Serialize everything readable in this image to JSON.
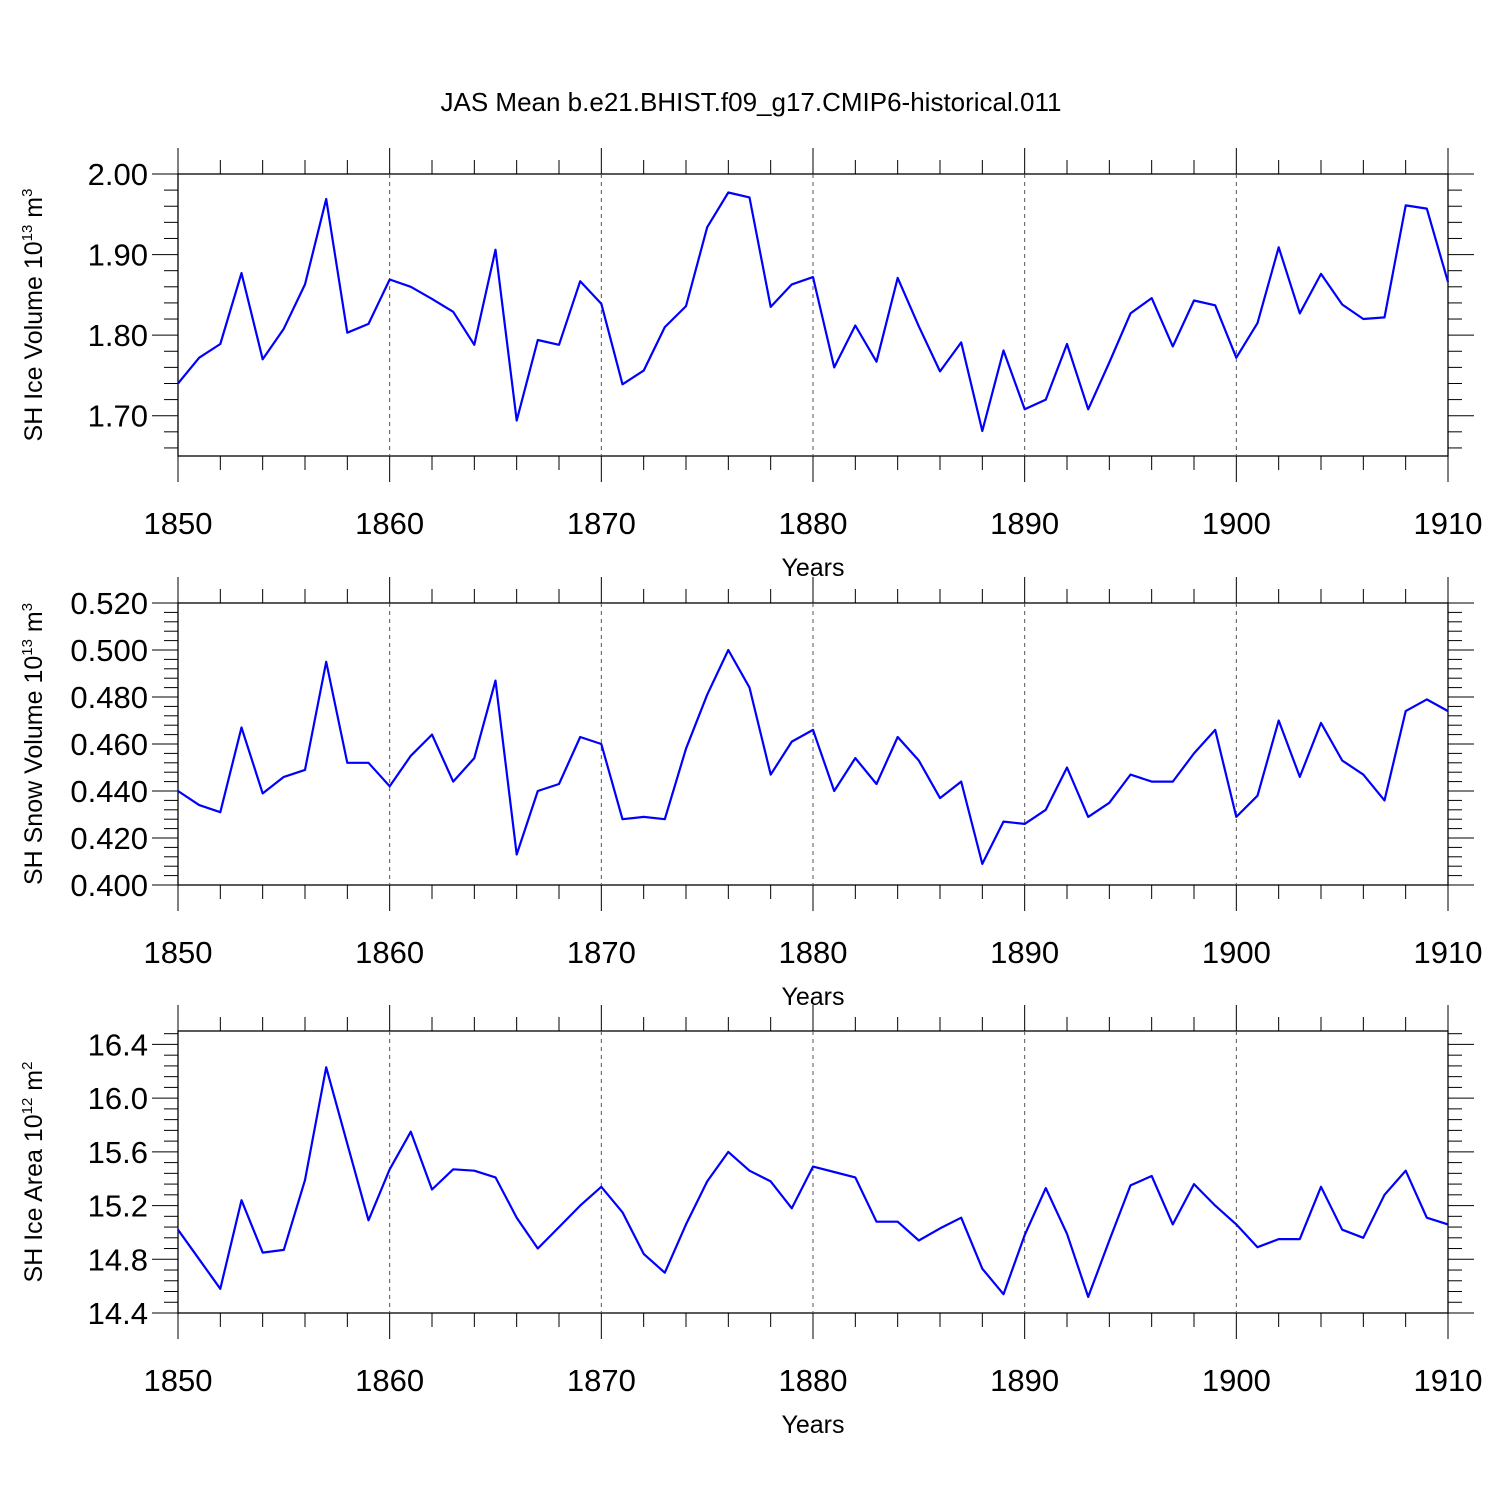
{
  "chart_data": [
    {
      "type": "line",
      "title": "JAS Mean b.e21.BHIST.f09_g17.CMIP6-historical.011",
      "ylabel": "SH Ice Volume 10",
      "ylabel_exp": "13",
      "ylabel_unit": " m",
      "ylabel_unit_exp": "3",
      "xlabel": "Years",
      "xlim": [
        1850,
        1910
      ],
      "ylim": [
        1.65,
        2.0
      ],
      "xticks": [
        1850,
        1860,
        1870,
        1880,
        1890,
        1900,
        1910
      ],
      "yticks": [
        1.7,
        1.8,
        1.9,
        2.0
      ],
      "ytick_labels": [
        "1.70",
        "1.80",
        "1.90",
        "2.00"
      ],
      "ytick_labels_ref": [
        1.7,
        1.8,
        1.9,
        2.0
      ],
      "color": "#0000ff",
      "x": [
        1850,
        1851,
        1852,
        1853,
        1854,
        1855,
        1856,
        1857,
        1858,
        1859,
        1860,
        1861,
        1862,
        1863,
        1864,
        1865,
        1866,
        1867,
        1868,
        1869,
        1870,
        1871,
        1872,
        1873,
        1874,
        1875,
        1876,
        1877,
        1878,
        1879,
        1880,
        1881,
        1882,
        1883,
        1884,
        1885,
        1886,
        1887,
        1888,
        1889,
        1890,
        1891,
        1892,
        1893,
        1894,
        1895,
        1896,
        1897,
        1898,
        1899,
        1900,
        1901,
        1902,
        1903,
        1904,
        1905,
        1906,
        1907,
        1908,
        1909,
        1910
      ],
      "y": [
        1.74,
        1.772,
        1.789,
        1.877,
        1.77,
        1.808,
        1.863,
        1.969,
        1.803,
        1.814,
        1.869,
        1.86,
        1.845,
        1.829,
        1.788,
        1.906,
        1.694,
        1.794,
        1.788,
        1.867,
        1.839,
        1.739,
        1.756,
        1.81,
        1.836,
        1.934,
        1.977,
        1.971,
        1.835,
        1.863,
        1.872,
        1.76,
        1.812,
        1.767,
        1.871,
        1.811,
        1.755,
        1.791,
        1.681,
        1.781,
        1.708,
        1.72,
        1.789,
        1.708,
        1.766,
        1.827,
        1.846,
        1.786,
        1.843,
        1.837,
        1.772,
        1.815,
        1.909,
        1.827,
        1.876,
        1.838,
        1.82,
        1.822,
        1.961,
        1.957,
        1.866
      ]
    },
    {
      "type": "line",
      "ylabel": "SH Snow Volume 10",
      "ylabel_exp": "13",
      "ylabel_unit": " m",
      "ylabel_unit_exp": "3",
      "xlabel": "Years",
      "xlim": [
        1850,
        1910
      ],
      "ylim": [
        0.4,
        0.52
      ],
      "xticks": [
        1850,
        1860,
        1870,
        1880,
        1890,
        1900,
        1910
      ],
      "yticks": [
        0.4,
        0.42,
        0.44,
        0.46,
        0.48,
        0.5,
        0.52
      ],
      "ytick_labels": [
        "0.400",
        "0.420",
        "0.440",
        "0.460",
        "0.480",
        "0.500",
        "0.520"
      ],
      "ytick_labels_ref": [
        0.4,
        0.42,
        0.44,
        0.46,
        0.48,
        0.5,
        0.52
      ],
      "color": "#0000ff",
      "x": [
        1850,
        1851,
        1852,
        1853,
        1854,
        1855,
        1856,
        1857,
        1858,
        1859,
        1860,
        1861,
        1862,
        1863,
        1864,
        1865,
        1866,
        1867,
        1868,
        1869,
        1870,
        1871,
        1872,
        1873,
        1874,
        1875,
        1876,
        1877,
        1878,
        1879,
        1880,
        1881,
        1882,
        1883,
        1884,
        1885,
        1886,
        1887,
        1888,
        1889,
        1890,
        1891,
        1892,
        1893,
        1894,
        1895,
        1896,
        1897,
        1898,
        1899,
        1900,
        1901,
        1902,
        1903,
        1904,
        1905,
        1906,
        1907,
        1908,
        1909,
        1910
      ],
      "y": [
        0.44,
        0.434,
        0.431,
        0.467,
        0.439,
        0.446,
        0.449,
        0.495,
        0.452,
        0.452,
        0.442,
        0.455,
        0.464,
        0.444,
        0.454,
        0.487,
        0.413,
        0.44,
        0.443,
        0.463,
        0.46,
        0.428,
        0.429,
        0.428,
        0.458,
        0.481,
        0.5,
        0.484,
        0.447,
        0.461,
        0.466,
        0.44,
        0.454,
        0.443,
        0.463,
        0.453,
        0.437,
        0.444,
        0.409,
        0.427,
        0.426,
        0.432,
        0.45,
        0.429,
        0.435,
        0.447,
        0.444,
        0.444,
        0.456,
        0.466,
        0.429,
        0.438,
        0.47,
        0.446,
        0.469,
        0.453,
        0.447,
        0.436,
        0.474,
        0.479,
        0.474
      ]
    },
    {
      "type": "line",
      "ylabel": "SH Ice Area 10",
      "ylabel_exp": "12",
      "ylabel_unit": " m",
      "ylabel_unit_exp": "2",
      "xlabel": "Years",
      "xlim": [
        1850,
        1910
      ],
      "ylim": [
        14.4,
        16.5
      ],
      "xticks": [
        1850,
        1860,
        1870,
        1880,
        1890,
        1900,
        1910
      ],
      "yticks": [
        14.4,
        14.8,
        15.2,
        15.6,
        16.0,
        16.4
      ],
      "ytick_labels": [
        "14.4",
        "14.8",
        "15.2",
        "15.6",
        "16.0",
        "16.4"
      ],
      "ytick_labels_ref": [
        14.4,
        14.8,
        15.2,
        15.6,
        16.0,
        16.4
      ],
      "color": "#0000ff",
      "x": [
        1850,
        1851,
        1852,
        1853,
        1854,
        1855,
        1856,
        1857,
        1858,
        1859,
        1860,
        1861,
        1862,
        1863,
        1864,
        1865,
        1866,
        1867,
        1868,
        1869,
        1870,
        1871,
        1872,
        1873,
        1874,
        1875,
        1876,
        1877,
        1878,
        1879,
        1880,
        1881,
        1882,
        1883,
        1884,
        1885,
        1886,
        1887,
        1888,
        1889,
        1890,
        1891,
        1892,
        1893,
        1894,
        1895,
        1896,
        1897,
        1898,
        1899,
        1900,
        1901,
        1902,
        1903,
        1904,
        1905,
        1906,
        1907,
        1908,
        1909,
        1910
      ],
      "y": [
        15.02,
        14.8,
        14.58,
        15.24,
        14.85,
        14.87,
        15.39,
        16.23,
        15.66,
        15.09,
        15.47,
        15.75,
        15.32,
        15.47,
        15.46,
        15.41,
        15.11,
        14.88,
        15.04,
        15.2,
        15.34,
        15.15,
        14.84,
        14.7,
        15.06,
        15.38,
        15.6,
        15.46,
        15.38,
        15.18,
        15.49,
        15.45,
        15.41,
        15.08,
        15.08,
        14.94,
        15.03,
        15.11,
        14.73,
        14.54,
        14.98,
        15.33,
        14.99,
        14.52,
        14.94,
        15.35,
        15.42,
        15.06,
        15.36,
        15.2,
        15.06,
        14.89,
        14.95,
        14.95,
        15.34,
        15.02,
        14.96,
        15.28,
        15.46,
        15.11,
        15.06
      ]
    }
  ]
}
